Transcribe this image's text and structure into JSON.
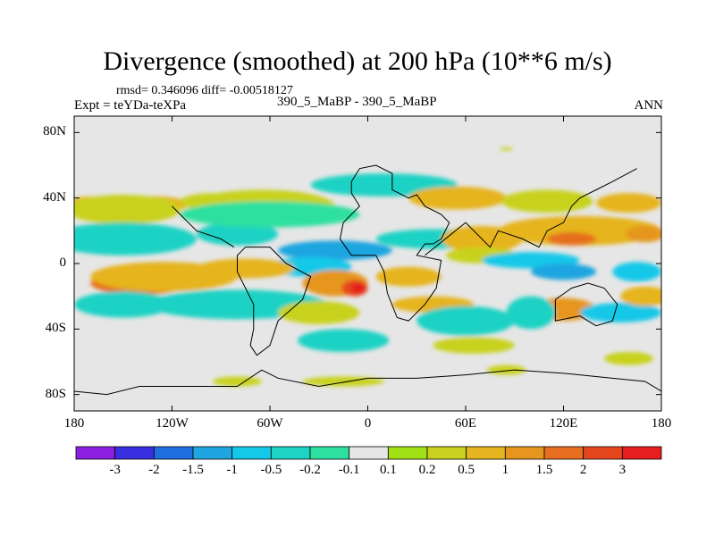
{
  "title": "Divergence (smoothed) at 200 hPa (10**6 m/s)",
  "stats_text": "rmsd= 0.346096 diff= -0.00518127",
  "experiment_text": "Expt = teYDa-teXPa",
  "case_text": "390_5_MaBP - 390_5_MaBP",
  "season": "ANN",
  "chart_data": {
    "type": "heatmap",
    "title": "Divergence (smoothed) at 200 hPa (10**6 m/s)",
    "map_projection": "cylindrical equidistant",
    "lon_range": [
      -180,
      180
    ],
    "lat_range": [
      -90,
      90
    ],
    "x_tick_values": [
      -180,
      -120,
      -60,
      0,
      60,
      120,
      180
    ],
    "x_tick_labels": [
      "180",
      "120W",
      "60W",
      "0",
      "60E",
      "120E",
      "180"
    ],
    "y_tick_values": [
      80,
      40,
      0,
      -40,
      -80
    ],
    "y_tick_labels": [
      "80N",
      "40N",
      "0",
      "40S",
      "80S"
    ],
    "colorbar": {
      "levels": [
        "-3",
        "-2",
        "-1.5",
        "-1",
        "-0.5",
        "-0.2",
        "-0.1",
        "0.1",
        "0.2",
        "0.5",
        "1",
        "1.5",
        "2",
        "3"
      ],
      "colors": [
        "#8b1fe0",
        "#3a2fe0",
        "#1f6fe0",
        "#1fa5e0",
        "#14c8e8",
        "#1ed2c4",
        "#2ee0a0",
        "#e6e6e6",
        "#a0e014",
        "#c8d21e",
        "#e6b41e",
        "#e6961e",
        "#e66e1e",
        "#e6461e",
        "#e61e1e"
      ]
    },
    "background_color": "#e6e6e6",
    "anomaly_blobs": [
      {
        "lon": -170,
        "lat": 35,
        "rlon": 15,
        "rlat": 6,
        "level": "0.5"
      },
      {
        "lon": -130,
        "lat": 36,
        "rlon": 20,
        "rlat": 5,
        "level": "0.5"
      },
      {
        "lon": -150,
        "lat": 33,
        "rlon": 35,
        "rlat": 9,
        "level": "0.2"
      },
      {
        "lon": -95,
        "lat": 38,
        "rlon": 20,
        "rlat": 5,
        "level": "0.2"
      },
      {
        "lon": -140,
        "lat": 15,
        "rlon": 30,
        "rlat": 6,
        "level": "-1"
      },
      {
        "lon": -150,
        "lat": 15,
        "rlon": 45,
        "rlat": 10,
        "level": "-0.2"
      },
      {
        "lon": -80,
        "lat": 18,
        "rlon": 25,
        "rlat": 7,
        "level": "-0.2"
      },
      {
        "lon": -65,
        "lat": 35,
        "rlon": 45,
        "rlat": 10,
        "level": "0.2"
      },
      {
        "lon": -60,
        "lat": 30,
        "rlon": 55,
        "rlat": 8,
        "level": "-0.1"
      },
      {
        "lon": 10,
        "lat": 48,
        "rlon": 45,
        "rlat": 7,
        "level": "-0.2"
      },
      {
        "lon": 55,
        "lat": 40,
        "rlon": 30,
        "rlat": 7,
        "level": "0.5"
      },
      {
        "lon": 110,
        "lat": 38,
        "rlon": 28,
        "rlat": 7,
        "level": "0.2"
      },
      {
        "lon": 160,
        "lat": 37,
        "rlon": 20,
        "rlat": 6,
        "level": "0.5"
      },
      {
        "lon": 130,
        "lat": 20,
        "rlon": 50,
        "rlat": 9,
        "level": "0.5"
      },
      {
        "lon": 125,
        "lat": 15,
        "rlon": 15,
        "rlat": 4,
        "level": "1.5"
      },
      {
        "lon": 170,
        "lat": 18,
        "rlon": 12,
        "rlat": 5,
        "level": "1"
      },
      {
        "lon": 40,
        "lat": 15,
        "rlon": 35,
        "rlat": 6,
        "level": "-0.2"
      },
      {
        "lon": 70,
        "lat": 15,
        "rlon": 25,
        "rlat": 8,
        "level": "0.5"
      },
      {
        "lon": 70,
        "lat": 5,
        "rlon": 22,
        "rlat": 5,
        "level": "0.2"
      },
      {
        "lon": -20,
        "lat": 8,
        "rlon": 35,
        "rlat": 6,
        "level": "-1"
      },
      {
        "lon": -35,
        "lat": -2,
        "rlon": 25,
        "rlat": 6,
        "level": "-0.5"
      },
      {
        "lon": -140,
        "lat": -12,
        "rlon": 30,
        "rlat": 7,
        "level": "1.5"
      },
      {
        "lon": -125,
        "lat": -8,
        "rlon": 45,
        "rlat": 9,
        "level": "0.5"
      },
      {
        "lon": -75,
        "lat": -3,
        "rlon": 30,
        "rlat": 6,
        "level": "0.5"
      },
      {
        "lon": -20,
        "lat": -12,
        "rlon": 20,
        "rlat": 8,
        "level": "1"
      },
      {
        "lon": -8,
        "lat": -15,
        "rlon": 8,
        "rlat": 5,
        "level": "2"
      },
      {
        "lon": -6,
        "lat": -15,
        "rlon": 4,
        "rlat": 3,
        "level": "3"
      },
      {
        "lon": 25,
        "lat": -8,
        "rlon": 20,
        "rlat": 6,
        "level": "0.5"
      },
      {
        "lon": 100,
        "lat": 2,
        "rlon": 30,
        "rlat": 5,
        "level": "-0.5"
      },
      {
        "lon": 120,
        "lat": -5,
        "rlon": 20,
        "rlat": 5,
        "level": "-1"
      },
      {
        "lon": 165,
        "lat": -5,
        "rlon": 15,
        "rlat": 6,
        "level": "-0.5"
      },
      {
        "lon": -150,
        "lat": -25,
        "rlon": 30,
        "rlat": 8,
        "level": "-0.2"
      },
      {
        "lon": -80,
        "lat": -25,
        "rlon": 55,
        "rlat": 9,
        "level": "-0.2"
      },
      {
        "lon": -30,
        "lat": -30,
        "rlon": 25,
        "rlat": 7,
        "level": "0.2"
      },
      {
        "lon": 40,
        "lat": -25,
        "rlon": 25,
        "rlat": 5,
        "level": "0.5"
      },
      {
        "lon": 60,
        "lat": -35,
        "rlon": 30,
        "rlat": 9,
        "level": "-0.2"
      },
      {
        "lon": 120,
        "lat": -28,
        "rlon": 20,
        "rlat": 7,
        "level": "1"
      },
      {
        "lon": 100,
        "lat": -30,
        "rlon": 15,
        "rlat": 10,
        "level": "-0.2"
      },
      {
        "lon": 155,
        "lat": -30,
        "rlon": 25,
        "rlat": 6,
        "level": "-0.5"
      },
      {
        "lon": 170,
        "lat": -20,
        "rlon": 15,
        "rlat": 6,
        "level": "0.5"
      },
      {
        "lon": -15,
        "lat": -47,
        "rlon": 28,
        "rlat": 7,
        "level": "-0.2"
      },
      {
        "lon": 65,
        "lat": -50,
        "rlon": 25,
        "rlat": 5,
        "level": "0.2"
      },
      {
        "lon": 160,
        "lat": -58,
        "rlon": 15,
        "rlat": 4,
        "level": "0.2"
      },
      {
        "lon": -80,
        "lat": -72,
        "rlon": 15,
        "rlat": 3,
        "level": "0.2"
      },
      {
        "lon": -15,
        "lat": -72,
        "rlon": 25,
        "rlat": 3,
        "level": "0.2"
      },
      {
        "lon": 85,
        "lat": -65,
        "rlon": 12,
        "rlat": 3,
        "level": "0.2"
      },
      {
        "lon": 85,
        "lat": 70,
        "rlon": 4,
        "rlat": 1,
        "level": "0.2"
      }
    ],
    "coastlines": [
      [
        [
          -10,
          50
        ],
        [
          -5,
          58
        ],
        [
          5,
          60
        ],
        [
          15,
          55
        ],
        [
          15,
          45
        ],
        [
          25,
          40
        ],
        [
          30,
          42
        ],
        [
          35,
          35
        ],
        [
          45,
          30
        ],
        [
          50,
          25
        ],
        [
          45,
          15
        ],
        [
          40,
          12
        ],
        [
          35,
          12
        ],
        [
          30,
          5
        ],
        [
          45,
          2
        ],
        [
          42,
          -15
        ],
        [
          35,
          -25
        ],
        [
          25,
          -35
        ],
        [
          18,
          -33
        ],
        [
          12,
          -18
        ],
        [
          10,
          -5
        ],
        [
          5,
          5
        ],
        [
          -5,
          5
        ],
        [
          -10,
          5
        ],
        [
          -17,
          15
        ],
        [
          -15,
          25
        ],
        [
          -5,
          35
        ],
        [
          -10,
          43
        ],
        [
          -10,
          50
        ]
      ],
      [
        [
          35,
          5
        ],
        [
          60,
          25
        ],
        [
          75,
          10
        ],
        [
          80,
          20
        ],
        [
          95,
          15
        ],
        [
          105,
          10
        ],
        [
          110,
          20
        ],
        [
          120,
          25
        ],
        [
          125,
          35
        ],
        [
          130,
          40
        ],
        [
          140,
          45
        ],
        [
          150,
          50
        ],
        [
          165,
          58
        ]
      ],
      [
        [
          -75,
          10
        ],
        [
          -80,
          5
        ],
        [
          -80,
          -5
        ],
        [
          -75,
          -15
        ],
        [
          -70,
          -25
        ],
        [
          -70,
          -40
        ],
        [
          -72,
          -50
        ],
        [
          -68,
          -56
        ],
        [
          -60,
          -50
        ],
        [
          -55,
          -35
        ],
        [
          -40,
          -22
        ],
        [
          -35,
          -8
        ],
        [
          -50,
          0
        ],
        [
          -60,
          10
        ],
        [
          -75,
          10
        ]
      ],
      [
        [
          -82,
          10
        ],
        [
          -90,
          15
        ],
        [
          -105,
          20
        ],
        [
          -110,
          25
        ],
        [
          -115,
          30
        ],
        [
          -120,
          35
        ]
      ],
      [
        [
          115,
          -22
        ],
        [
          115,
          -35
        ],
        [
          130,
          -32
        ],
        [
          140,
          -38
        ],
        [
          150,
          -35
        ],
        [
          153,
          -25
        ],
        [
          145,
          -15
        ],
        [
          135,
          -12
        ],
        [
          125,
          -15
        ],
        [
          115,
          -22
        ]
      ],
      [
        [
          -180,
          -78
        ],
        [
          -160,
          -80
        ],
        [
          -140,
          -75
        ],
        [
          -120,
          -75
        ],
        [
          -100,
          -75
        ],
        [
          -80,
          -75
        ],
        [
          -65,
          -65
        ],
        [
          -55,
          -70
        ],
        [
          -30,
          -75
        ],
        [
          0,
          -70
        ],
        [
          30,
          -70
        ],
        [
          60,
          -68
        ],
        [
          90,
          -65
        ],
        [
          120,
          -67
        ],
        [
          150,
          -70
        ],
        [
          170,
          -72
        ],
        [
          180,
          -78
        ]
      ]
    ]
  }
}
